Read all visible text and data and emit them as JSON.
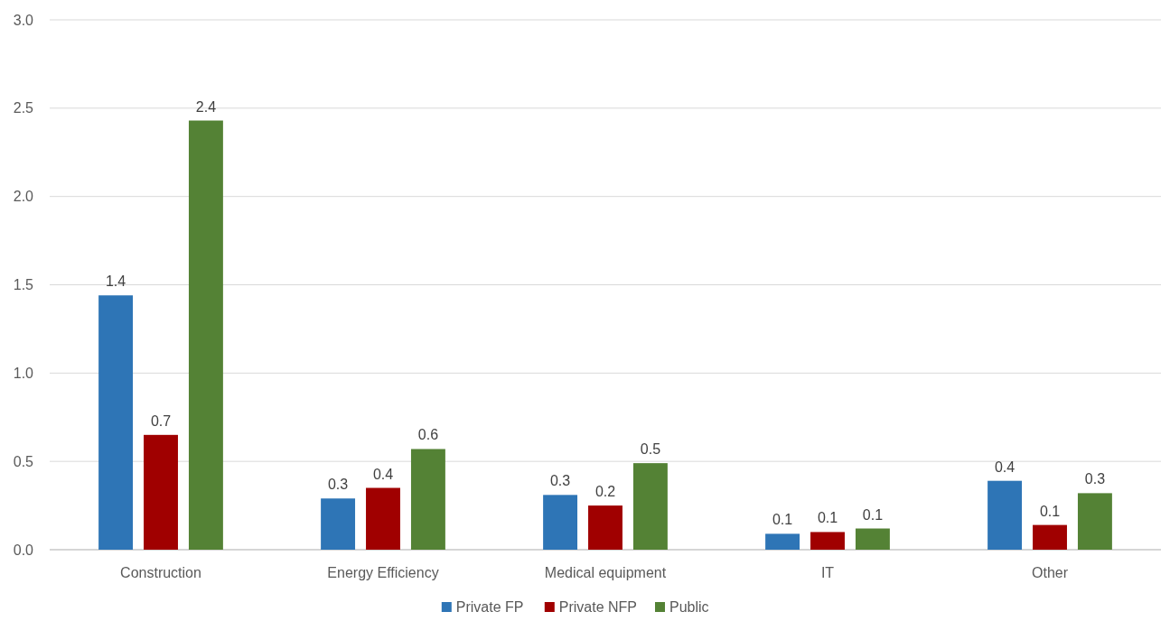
{
  "chart_data": {
    "type": "bar",
    "categories": [
      "Construction",
      "Energy Efficiency",
      "Medical equipment",
      "IT",
      "Other"
    ],
    "series": [
      {
        "name": "Private FP",
        "color": "#2e75b6",
        "values": [
          1.44,
          0.29,
          0.31,
          0.09,
          0.39
        ],
        "value_labels": [
          "1.4",
          "0.3",
          "0.3",
          "0.1",
          "0.4"
        ]
      },
      {
        "name": "Private NFP",
        "color": "#a00000",
        "values": [
          0.65,
          0.35,
          0.25,
          0.1,
          0.14
        ],
        "value_labels": [
          "0.7",
          "0.4",
          "0.2",
          "0.1",
          "0.1"
        ]
      },
      {
        "name": "Public",
        "color": "#548235",
        "values": [
          2.43,
          0.57,
          0.49,
          0.12,
          0.32
        ],
        "value_labels": [
          "2.4",
          "0.6",
          "0.5",
          "0.1",
          "0.3"
        ]
      }
    ],
    "ylim": [
      0,
      3
    ],
    "yticks": [
      {
        "value": 0,
        "label": "0.0"
      },
      {
        "value": 0.5,
        "label": "0.5"
      },
      {
        "value": 1,
        "label": "1.0"
      },
      {
        "value": 1.5,
        "label": "1.5"
      },
      {
        "value": 2,
        "label": "2.0"
      },
      {
        "value": 2.5,
        "label": "2.5"
      },
      {
        "value": 3,
        "label": "3.0"
      }
    ],
    "grid": "y",
    "legend": "bottom"
  }
}
